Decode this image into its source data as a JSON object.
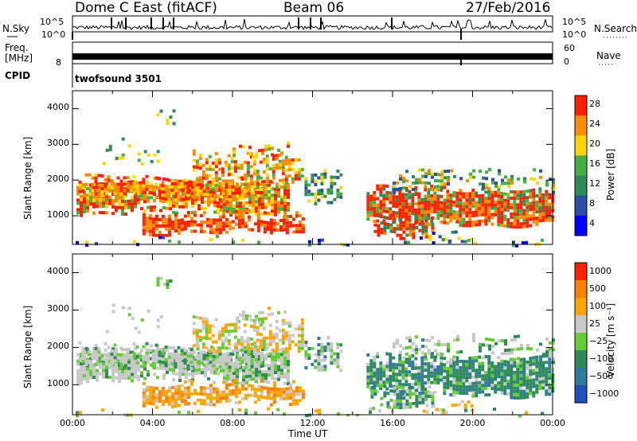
{
  "header": {
    "station": "Dome C East (fitACF)",
    "beam": "Beam 06",
    "date": "27/Feb/2016"
  },
  "top_panels": {
    "nsky_label": "N.Sky",
    "nsky_ticks": [
      "10^5",
      "10^0"
    ],
    "nsearch_label": "N.Search",
    "nsearch_ticks": [
      "10^5",
      "10^0"
    ],
    "freq_label_1": "Freq.",
    "freq_label_2": "[MHz]",
    "freq_tick": "8",
    "nave_label": "Nave",
    "nave_ticks": [
      "60",
      "0"
    ],
    "cpid_label": "CPID",
    "cpid_value": "twofsound 3501"
  },
  "chart_data": [
    {
      "type": "heatmap",
      "panel": "power",
      "ylabel": "Slant Range [km]",
      "ylim": [
        200,
        4500
      ],
      "yticks": [
        "4000",
        "3000",
        "2000",
        "1000"
      ],
      "xlim": [
        "00:00",
        "24:00"
      ],
      "colorbar_label": "Power [dB]",
      "colorbar_ticks": [
        "28",
        "24",
        "20",
        "16",
        "12",
        "8",
        "4"
      ],
      "colors": [
        "#0000ff",
        "#2a4fa8",
        "#2e8b57",
        "#44b044",
        "#ffd700",
        "#ff8c00",
        "#ff2000"
      ]
    },
    {
      "type": "heatmap",
      "panel": "velocity",
      "ylabel": "Slant Range [km]",
      "ylim": [
        200,
        4500
      ],
      "yticks": [
        "4000",
        "3000",
        "2000",
        "1000"
      ],
      "xlabel": "Time UT",
      "xticks": [
        "00:00",
        "04:00",
        "08:00",
        "12:00",
        "16:00",
        "20:00",
        "00:00"
      ],
      "colorbar_label": "Velocity [m s⁻¹]",
      "colorbar_ticks": [
        "1000",
        "500",
        "100",
        "25",
        "−25",
        "−100",
        "−500",
        "−1000"
      ],
      "colors": [
        "#1f4fbf",
        "#2f7a9a",
        "#2e8b57",
        "#66cc33",
        "#c8c8c8",
        "#ffa500",
        "#ff7f00",
        "#ff2000"
      ]
    }
  ]
}
